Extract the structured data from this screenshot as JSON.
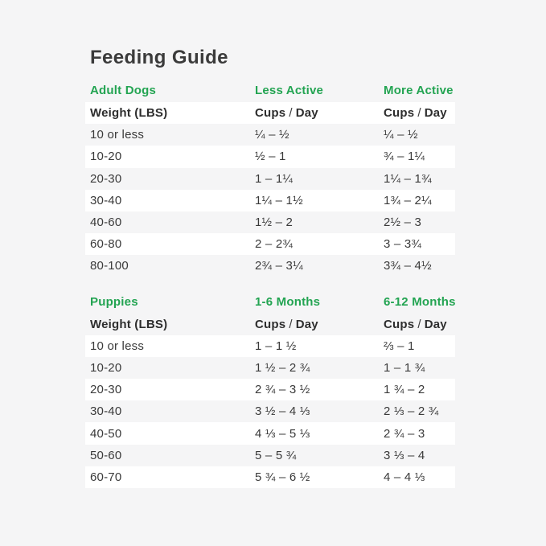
{
  "title": "Feeding Guide",
  "colors": {
    "background": "#f5f5f6",
    "row_stripe_white": "#ffffff",
    "accent_green": "#23a452",
    "text_dark": "#3a3a3a"
  },
  "adult": {
    "section": "Adult Dogs",
    "col2": "Less Active",
    "col3": "More Active",
    "weight_label": "Weight (LBS)",
    "cups_word": "Cups",
    "slash": "/",
    "day_word": "Day",
    "rows": [
      {
        "c1": "10 or less",
        "c2": "¼ – ½",
        "c3": "¼ – ½"
      },
      {
        "c1": "10-20",
        "c2": "½ – 1",
        "c3": "¾ – 1¼"
      },
      {
        "c1": "20-30",
        "c2": "1 – 1¼",
        "c3": "1¼ – 1¾"
      },
      {
        "c1": "30-40",
        "c2": "1¼ – 1½",
        "c3": "1¾ – 2¼"
      },
      {
        "c1": "40-60",
        "c2": "1½ – 2",
        "c3": "2½ – 3"
      },
      {
        "c1": "60-80",
        "c2": "2 – 2¾",
        "c3": "3 – 3¾"
      },
      {
        "c1": "80-100",
        "c2": "2¾ – 3¼",
        "c3": "3¾ – 4½"
      }
    ]
  },
  "puppies": {
    "section": "Puppies",
    "col2": "1-6 Months",
    "col3": "6-12 Months",
    "weight_label": "Weight (LBS)",
    "cups_word": "Cups",
    "slash": "/",
    "day_word": "Day",
    "rows": [
      {
        "c1": "10 or less",
        "c2": "1 – 1 ½",
        "c3": "⅔ – 1"
      },
      {
        "c1": "10-20",
        "c2": "1 ½ – 2 ¾",
        "c3": "1 – 1 ¾"
      },
      {
        "c1": "20-30",
        "c2": "2 ¾ – 3 ½",
        "c3": "1 ¾ – 2"
      },
      {
        "c1": "30-40",
        "c2": "3 ½ – 4 ⅓",
        "c3": "2 ⅓ – 2 ¾"
      },
      {
        "c1": "40-50",
        "c2": "4 ⅓ – 5 ⅓",
        "c3": "2 ¾ – 3"
      },
      {
        "c1": "50-60",
        "c2": "5 – 5 ¾",
        "c3": "3 ⅓ – 4"
      },
      {
        "c1": "60-70",
        "c2": "5 ¾ – 6 ½",
        "c3": "4 – 4 ⅓"
      }
    ]
  }
}
